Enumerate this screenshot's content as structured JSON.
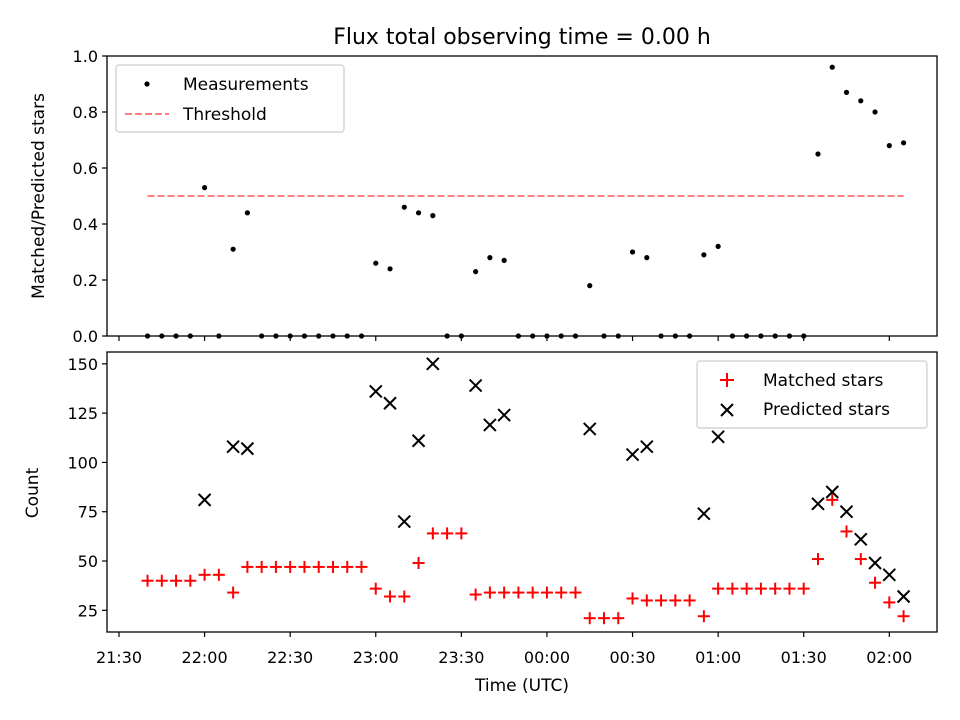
{
  "chart_data": [
    {
      "type": "scatter",
      "title": "Flux total observing time = 0.00 h",
      "xlabel": "",
      "ylabel": "Matched/Predicted stars",
      "ylim": [
        0,
        1
      ],
      "yticks": [
        "0.0",
        "0.2",
        "0.4",
        "0.6",
        "0.8",
        "1.0"
      ],
      "grid": false,
      "legend_position": "top-left",
      "series": [
        {
          "name": "Measurements",
          "marker": "dot",
          "color": "#000000",
          "x": [
            "21:40",
            "21:45",
            "21:50",
            "21:55",
            "22:00",
            "22:05",
            "22:10",
            "22:15",
            "22:20",
            "22:25",
            "22:30",
            "22:35",
            "22:40",
            "22:45",
            "22:50",
            "22:55",
            "23:00",
            "23:05",
            "23:10",
            "23:15",
            "23:20",
            "23:25",
            "23:30",
            "23:35",
            "23:40",
            "23:45",
            "23:50",
            "23:55",
            "00:00",
            "00:05",
            "00:10",
            "00:15",
            "00:20",
            "00:25",
            "00:30",
            "00:35",
            "00:40",
            "00:45",
            "00:50",
            "00:55",
            "01:00",
            "01:05",
            "01:10",
            "01:15",
            "01:20",
            "01:25",
            "01:30",
            "01:35",
            "01:40",
            "01:45",
            "01:50",
            "01:55",
            "02:00",
            "02:05"
          ],
          "values": [
            0,
            0,
            0,
            0,
            0.53,
            0,
            0.31,
            0.44,
            0,
            0,
            0,
            0,
            0,
            0,
            0,
            0,
            0.26,
            0.24,
            0.46,
            0.44,
            0.43,
            0,
            0,
            0.23,
            0.28,
            0.27,
            0,
            0,
            0,
            0,
            0,
            0.18,
            0,
            0,
            0.3,
            0.28,
            0,
            0,
            0,
            0.29,
            0.32,
            0,
            0,
            0,
            0,
            0,
            0,
            0.65,
            0.96,
            0.87,
            0.84,
            0.8,
            0.68,
            0.69
          ]
        },
        {
          "name": "Threshold",
          "marker": "dashed-line",
          "color": "#ff7f7f",
          "x": [
            "21:40",
            "02:05"
          ],
          "values": [
            0.5,
            0.5
          ]
        }
      ]
    },
    {
      "type": "scatter",
      "title": "",
      "xlabel": "Time (UTC)",
      "ylabel": "Count",
      "ylim": [
        14,
        156
      ],
      "yticks": [
        "25",
        "50",
        "75",
        "100",
        "125",
        "150"
      ],
      "xticks": [
        "21:30",
        "22:00",
        "22:30",
        "23:00",
        "23:30",
        "00:00",
        "00:30",
        "01:00",
        "01:30",
        "02:00"
      ],
      "grid": false,
      "legend_position": "top-right",
      "series": [
        {
          "name": "Matched stars",
          "marker": "plus",
          "color": "#ff0000",
          "x": [
            "21:40",
            "21:45",
            "21:50",
            "21:55",
            "22:00",
            "22:05",
            "22:10",
            "22:15",
            "22:20",
            "22:25",
            "22:30",
            "22:35",
            "22:40",
            "22:45",
            "22:50",
            "22:55",
            "23:00",
            "23:05",
            "23:10",
            "23:15",
            "23:20",
            "23:25",
            "23:30",
            "23:35",
            "23:40",
            "23:45",
            "23:50",
            "23:55",
            "00:00",
            "00:05",
            "00:10",
            "00:15",
            "00:20",
            "00:25",
            "00:30",
            "00:35",
            "00:40",
            "00:45",
            "00:50",
            "00:55",
            "01:00",
            "01:05",
            "01:10",
            "01:15",
            "01:20",
            "01:25",
            "01:30",
            "01:35",
            "01:40",
            "01:45",
            "01:50",
            "01:55",
            "02:00",
            "02:05"
          ],
          "values": [
            40,
            40,
            40,
            40,
            43,
            43,
            34,
            47,
            47,
            47,
            47,
            47,
            47,
            47,
            47,
            47,
            36,
            32,
            32,
            49,
            64,
            64,
            64,
            33,
            34,
            34,
            34,
            34,
            34,
            34,
            34,
            21,
            21,
            21,
            31,
            30,
            30,
            30,
            30,
            22,
            36,
            36,
            36,
            36,
            36,
            36,
            36,
            51,
            81,
            65,
            51,
            39,
            29,
            22
          ]
        },
        {
          "name": "Predicted stars",
          "marker": "x",
          "color": "#000000",
          "x": [
            "22:00",
            "22:10",
            "22:15",
            "23:00",
            "23:05",
            "23:10",
            "23:15",
            "23:20",
            "23:35",
            "23:40",
            "23:45",
            "00:15",
            "00:30",
            "00:35",
            "00:55",
            "01:00",
            "01:35",
            "01:40",
            "01:45",
            "01:50",
            "01:55",
            "02:00",
            "02:05"
          ],
          "values": [
            81,
            108,
            107,
            136,
            130,
            70,
            111,
            150,
            139,
            119,
            124,
            117,
            104,
            108,
            74,
            113,
            79,
            85,
            75,
            61,
            49,
            43,
            32
          ]
        }
      ]
    }
  ]
}
